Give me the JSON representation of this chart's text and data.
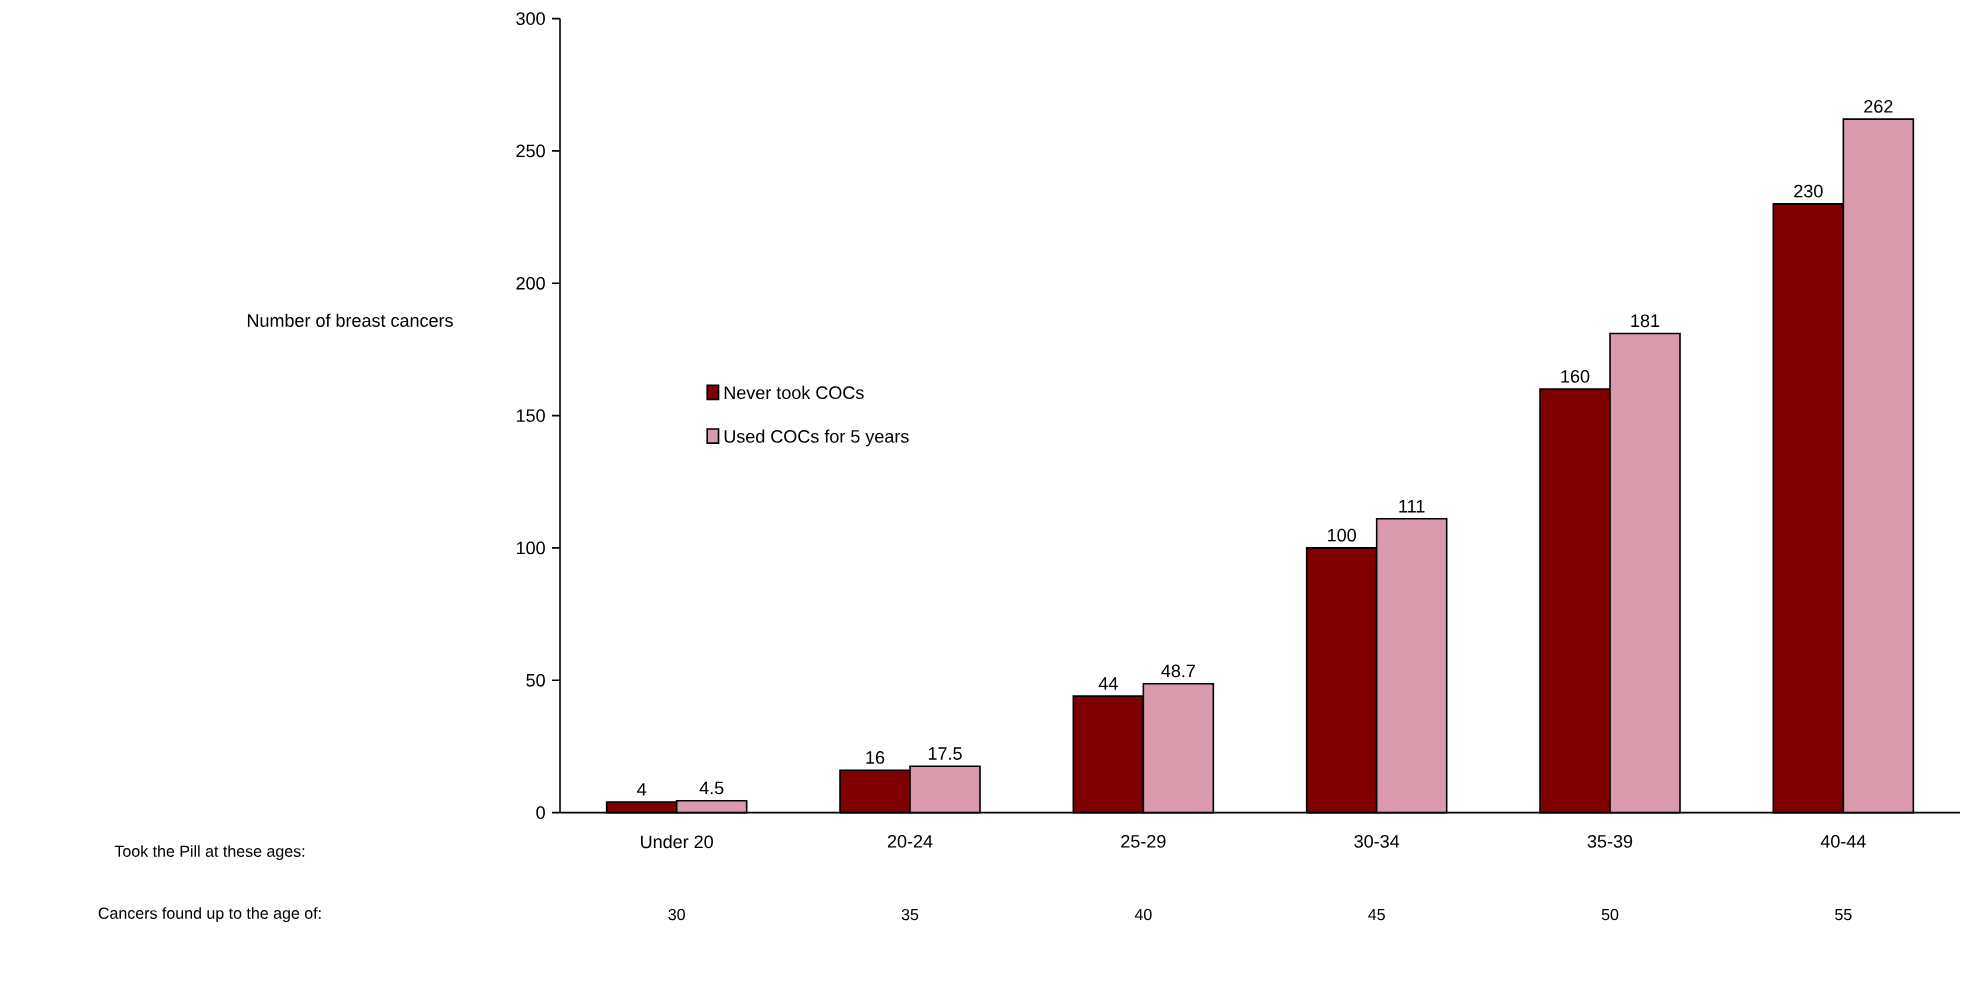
{
  "chart_data": {
    "type": "bar",
    "ylabel": "Number of breast cancers",
    "categories": [
      "Under 20",
      "20-24",
      "25-29",
      "30-34",
      "35-39",
      "40-44"
    ],
    "series": [
      {
        "name": "Never took COCs",
        "color": "#7f0000",
        "values": [
          4,
          16,
          44,
          100,
          160,
          230
        ],
        "value_labels": [
          "4",
          "16",
          "44",
          "100",
          "160",
          "230"
        ]
      },
      {
        "name": "Used COCs for 5 years",
        "color": "#d99aae",
        "values": [
          4.5,
          17.5,
          48.7,
          111,
          181,
          262
        ],
        "value_labels": [
          "4.5",
          "17.5",
          "48.7",
          "111",
          "181",
          "262"
        ]
      }
    ],
    "ylim": [
      0,
      300
    ],
    "yticks": [
      0,
      50,
      100,
      150,
      200,
      250,
      300
    ],
    "grid": false,
    "legend": "left",
    "annotations": [
      "Took the Pill at these ages:",
      "Cancers found up to the age of:",
      "30",
      "35",
      "40",
      "45",
      "50",
      "55"
    ]
  }
}
